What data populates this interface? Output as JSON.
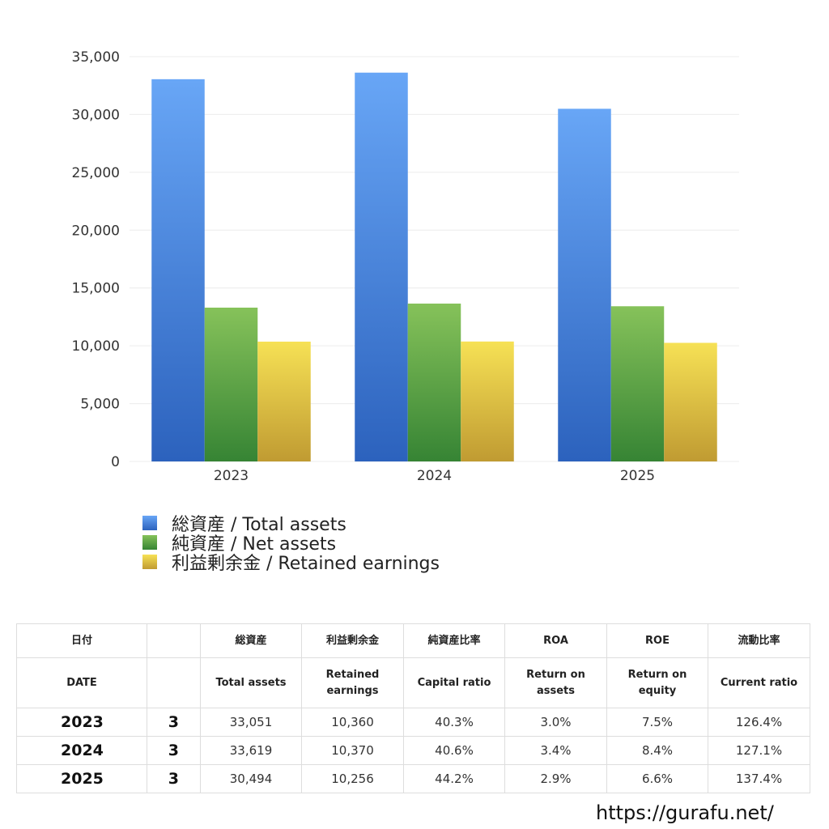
{
  "chart_data": {
    "type": "bar",
    "categories": [
      "2023",
      "2024",
      "2025"
    ],
    "series": [
      {
        "name": "総資産 / Total assets",
        "values": [
          33051,
          33619,
          30494
        ],
        "color": "#4f8fe6"
      },
      {
        "name": "純資産 / Net assets",
        "values": [
          13300,
          13650,
          13420
        ],
        "color": "#5aa648"
      },
      {
        "name": "利益剰余金 / Retained earnings",
        "values": [
          10360,
          10370,
          10256
        ],
        "color": "#e9cf4a"
      }
    ],
    "ylim": [
      0,
      35000
    ],
    "yticks": [
      "0",
      "5,000",
      "10,000",
      "15,000",
      "20,000",
      "25,000",
      "30,000",
      "35,000"
    ],
    "grid": true,
    "legend_position": "bottom-left"
  },
  "table": {
    "headers_jp": [
      "日付",
      "",
      "総資産",
      "利益剰余金",
      "純資産比率",
      "ROA",
      "ROE",
      "流動比率"
    ],
    "headers_en": [
      "DATE",
      "",
      "Total assets",
      "Retained earnings",
      "Capital ratio",
      "Return on assets",
      "Return on equity",
      "Current ratio"
    ],
    "rows": [
      [
        "2023",
        "3",
        "33,051",
        "10,360",
        "40.3%",
        "3.0%",
        "7.5%",
        "126.4%"
      ],
      [
        "2024",
        "3",
        "33,619",
        "10,370",
        "40.6%",
        "3.4%",
        "8.4%",
        "127.1%"
      ],
      [
        "2025",
        "3",
        "30,494",
        "10,256",
        "44.2%",
        "2.9%",
        "6.6%",
        "137.4%"
      ]
    ]
  },
  "footer": {
    "url": "https://gurafu.net/"
  }
}
